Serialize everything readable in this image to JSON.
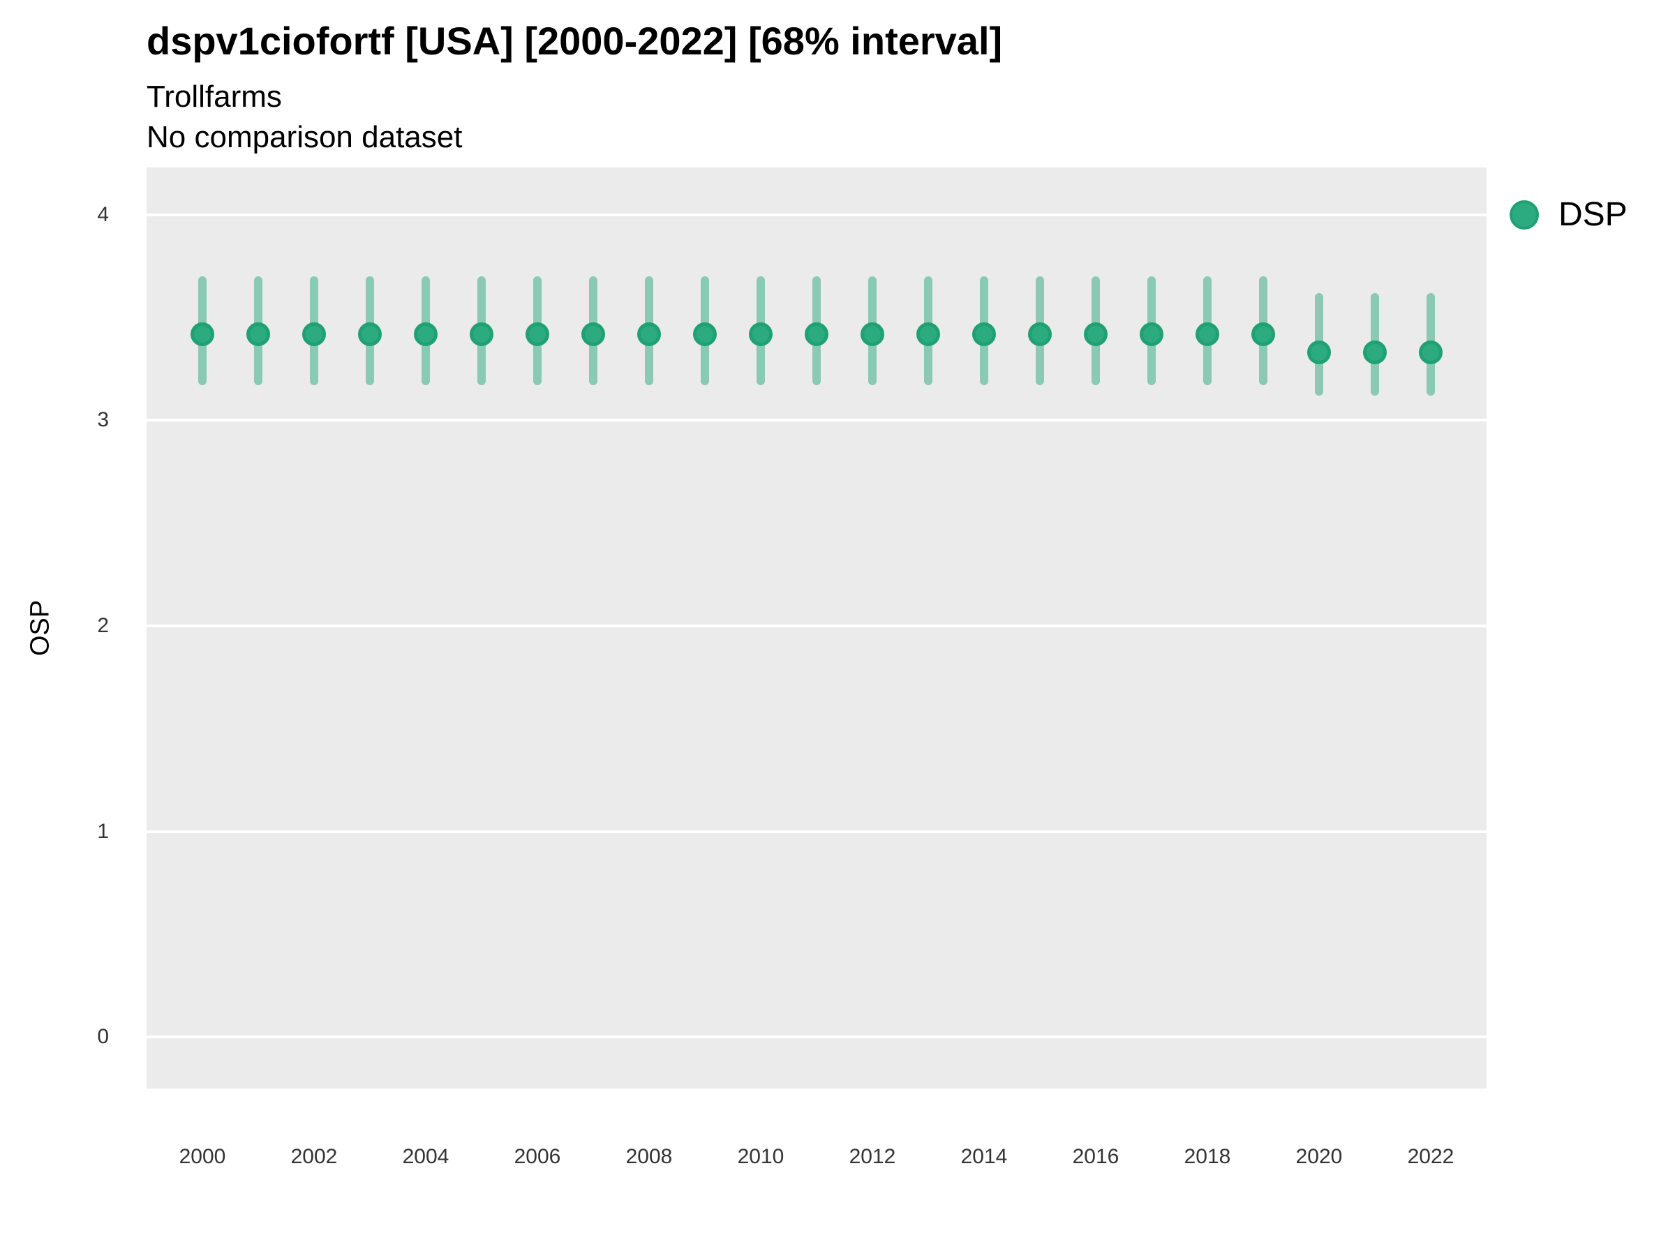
{
  "header": {
    "title": "dspv1ciofortf [USA] [2000-2022] [68% interval]",
    "subtitle": "Trollfarms",
    "comparison_note": "No comparison dataset"
  },
  "legend": {
    "position": "right-top",
    "items": [
      {
        "label": "DSP",
        "color": "#2AA87C"
      }
    ]
  },
  "colors": {
    "point_fill": "#2BAB7F",
    "point_ring": "#1FA173",
    "interval_bar": "rgba(42,168,124,0.5)",
    "panel_background": "#EBEBEB",
    "gridline": "#FFFFFF",
    "title_text": "#000000",
    "tick_text": "#333333"
  },
  "chart_data": {
    "type": "scatter",
    "subtype": "pointrange",
    "title": "dspv1ciofortf [USA] [2000-2022] [68% interval]",
    "subtitle": "Trollfarms",
    "note": "No comparison dataset",
    "interval_label": "68% interval",
    "xlabel": "",
    "ylabel": "OSP",
    "grid": "major-horizontal-only",
    "legend_position": "right",
    "xlim": [
      1999,
      2023
    ],
    "ylim": [
      -0.25,
      4.23
    ],
    "x_ticks": [
      2000,
      2002,
      2004,
      2006,
      2008,
      2010,
      2012,
      2014,
      2016,
      2018,
      2020,
      2022
    ],
    "y_ticks": [
      0,
      1,
      2,
      3,
      4
    ],
    "series": [
      {
        "name": "DSP",
        "x": [
          2000,
          2001,
          2002,
          2003,
          2004,
          2005,
          2006,
          2007,
          2008,
          2009,
          2010,
          2011,
          2012,
          2013,
          2014,
          2015,
          2016,
          2017,
          2018,
          2019,
          2020,
          2021,
          2022
        ],
        "y": [
          3.42,
          3.42,
          3.42,
          3.42,
          3.42,
          3.42,
          3.42,
          3.42,
          3.42,
          3.42,
          3.42,
          3.42,
          3.42,
          3.42,
          3.42,
          3.42,
          3.42,
          3.42,
          3.42,
          3.42,
          3.33,
          3.33,
          3.33
        ],
        "y_low": [
          3.17,
          3.17,
          3.17,
          3.17,
          3.17,
          3.17,
          3.17,
          3.17,
          3.17,
          3.17,
          3.17,
          3.17,
          3.17,
          3.17,
          3.17,
          3.17,
          3.17,
          3.17,
          3.17,
          3.17,
          3.12,
          3.12,
          3.12
        ],
        "y_high": [
          3.7,
          3.7,
          3.7,
          3.7,
          3.7,
          3.7,
          3.7,
          3.7,
          3.7,
          3.7,
          3.7,
          3.7,
          3.7,
          3.7,
          3.7,
          3.7,
          3.7,
          3.7,
          3.7,
          3.7,
          3.62,
          3.62,
          3.62
        ]
      }
    ]
  }
}
